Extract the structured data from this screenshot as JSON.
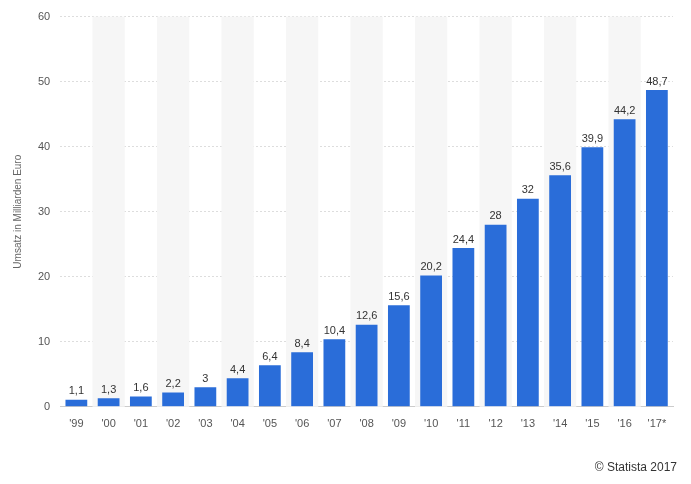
{
  "chart_data": {
    "type": "bar",
    "y_label": "Umsatz in Milliarden Euro",
    "source": "© Statista 2017",
    "categories": [
      "'99",
      "'00",
      "'01",
      "'02",
      "'03",
      "'04",
      "'05",
      "'06",
      "'07",
      "'08",
      "'09",
      "'10",
      "'11",
      "'12",
      "'13",
      "'14",
      "'15",
      "'16",
      "'17*"
    ],
    "values": [
      1.1,
      1.3,
      1.6,
      2.2,
      3,
      4.4,
      6.4,
      8.4,
      10.4,
      12.6,
      15.6,
      20.2,
      24.4,
      28,
      32,
      35.6,
      39.9,
      44.2,
      48.7
    ],
    "value_labels": [
      "1,1",
      "1,3",
      "1,6",
      "2,2",
      "3",
      "4,4",
      "6,4",
      "8,4",
      "10,4",
      "12,6",
      "15,6",
      "20,2",
      "24,4",
      "28",
      "32",
      "35,6",
      "39,9",
      "44,2",
      "48,7"
    ],
    "color": "#2a6dd9",
    "ylim": [
      0,
      60
    ],
    "yticks": [
      0,
      10,
      20,
      30,
      40,
      50,
      60
    ],
    "grid": true,
    "data_labels": true
  }
}
